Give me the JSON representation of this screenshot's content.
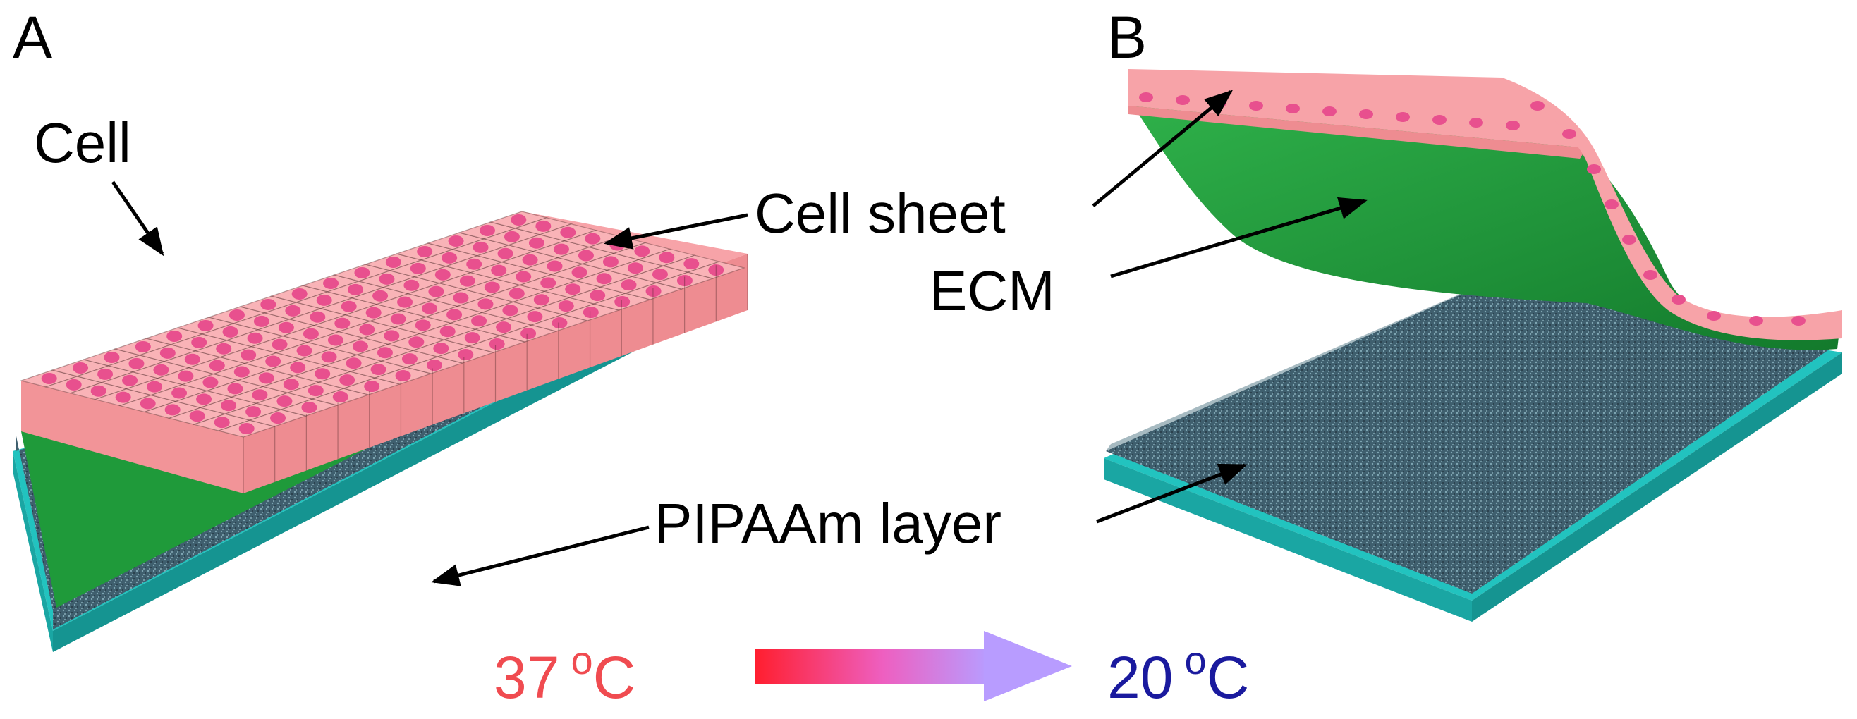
{
  "panels": {
    "a_label": "A",
    "b_label": "B"
  },
  "labels": {
    "cell": "Cell",
    "cell_sheet": "Cell sheet",
    "ecm": "ECM",
    "pipaam_layer": "PIPAAm layer"
  },
  "temperatures": {
    "left": {
      "value": "37",
      "unit_degree": "o",
      "unit_letter": "C",
      "color": "#f04b50"
    },
    "right": {
      "value": "20",
      "unit_degree": "o",
      "unit_letter": "C",
      "color": "#1a1a9e"
    }
  },
  "colors": {
    "cell_pink": "#f7a3a8",
    "nucleus_pink": "#e8508e",
    "ecm_green": "#1f9a3a",
    "substrate_cyan": "#22c3bf",
    "pipaam_gray": "#3f5f6e",
    "gradient_start": "#ff1e2e",
    "gradient_end": "#b89cff"
  }
}
